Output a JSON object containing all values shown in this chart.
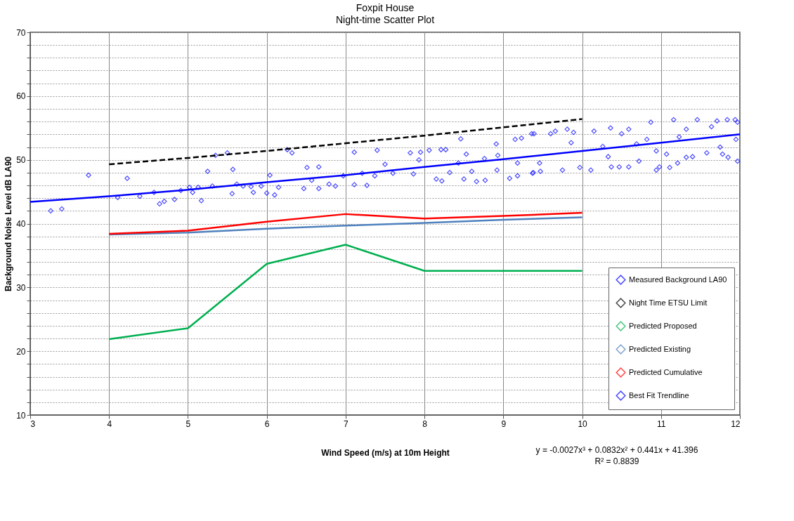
{
  "chart_data": {
    "type": "scatter",
    "title": "Foxpit House",
    "subtitle": "Night-time Scatter Plot",
    "xlabel": "Wind Speed (m/s) at 10m Height",
    "ylabel": "Background Noise Level dB LA90",
    "xlim": [
      3,
      12
    ],
    "xticks": [
      3,
      4,
      5,
      6,
      7,
      8,
      9,
      10,
      11,
      12
    ],
    "ylim": [
      10,
      70
    ],
    "yticks": [
      10,
      {
        "value": 12,
        "label": null
      },
      {
        "value": 14,
        "label": null
      },
      {
        "value": 16,
        "label": null
      },
      {
        "value": 18,
        "label": null
      },
      20,
      {
        "value": 22,
        "label": null
      },
      {
        "value": 24,
        "label": null
      },
      {
        "value": 26,
        "label": null
      },
      {
        "value": 28,
        "label": null
      },
      30,
      {
        "value": 32,
        "label": null
      },
      {
        "value": 34,
        "label": null
      },
      {
        "value": 36,
        "label": null
      },
      {
        "value": 38,
        "label": null
      },
      40,
      {
        "value": 42,
        "label": null
      },
      {
        "value": 44,
        "label": null
      },
      {
        "value": 46,
        "label": null
      },
      {
        "value": 48,
        "label": null
      },
      50,
      {
        "value": 52,
        "label": null
      },
      {
        "value": 54,
        "label": null
      },
      {
        "value": 56,
        "label": null
      },
      {
        "value": 58,
        "label": null
      },
      60,
      {
        "value": 62,
        "label": null
      },
      {
        "value": 64,
        "label": null
      },
      {
        "value": 66,
        "label": null
      },
      {
        "value": 68,
        "label": null
      },
      70
    ],
    "grid": true,
    "legend": "bottom right",
    "annotations": [
      "y = -0.0027x³ + 0.0832x² + 0.441x + 41.396",
      "R² = 0.8839"
    ],
    "series": [
      {
        "name": "Measured Background LA90",
        "color": "#0000ff",
        "marker": "diamond",
        "x": [
          3.26,
          3.4,
          3.74,
          4.11,
          4.23,
          4.39,
          4.57,
          4.64,
          4.7,
          4.83,
          4.91,
          5.02,
          5.06,
          5.13,
          5.17,
          5.25,
          5.31,
          5.35,
          5.5,
          5.57,
          5.56,
          5.62,
          5.7,
          5.8,
          5.83,
          5.93,
          6.0,
          6.04,
          6.1,
          6.15,
          6.26,
          6.32,
          6.51,
          6.66,
          6.47,
          6.57,
          6.66,
          6.79,
          6.87,
          6.97,
          7.11,
          7.11,
          7.27,
          7.21,
          7.37,
          7.4,
          7.5,
          7.6,
          7.82,
          7.86,
          7.95,
          7.93,
          8.06,
          8.15,
          8.21,
          8.27,
          8.22,
          8.32,
          8.43,
          8.46,
          8.53,
          8.5,
          8.6,
          8.66,
          8.76,
          8.77,
          8.91,
          8.92,
          8.93,
          9.08,
          9.15,
          9.23,
          9.18,
          9.38,
          9.36,
          9.18,
          9.37,
          9.39,
          9.47,
          9.46,
          9.6,
          9.66,
          9.75,
          9.81,
          9.86,
          9.89,
          9.97,
          10.11,
          10.15,
          10.26,
          10.33,
          10.36,
          10.37,
          10.47,
          10.5,
          10.59,
          10.59,
          10.69,
          10.72,
          10.82,
          10.87,
          10.94,
          10.94,
          10.98,
          11.07,
          11.11,
          11.16,
          11.21,
          11.23,
          11.32,
          11.32,
          11.4,
          11.46,
          11.58,
          11.64,
          11.71,
          11.75,
          11.78,
          11.85,
          11.84,
          11.94,
          11.95,
          11.97,
          11.97
        ],
        "values": [
          42.0,
          42.3,
          47.6,
          44.1,
          47.1,
          44.3,
          44.9,
          43.1,
          43.5,
          43.8,
          45.2,
          45.7,
          44.9,
          45.7,
          43.6,
          48.2,
          45.9,
          50.7,
          51.1,
          48.5,
          44.7,
          46.2,
          45.9,
          45.8,
          44.9,
          45.9,
          44.8,
          47.6,
          44.5,
          45.7,
          51.6,
          51.1,
          48.8,
          48.9,
          45.5,
          46.8,
          45.5,
          46.2,
          45.9,
          47.5,
          51.2,
          46.1,
          46.0,
          47.9,
          47.5,
          51.5,
          49.3,
          47.9,
          51.1,
          47.8,
          51.2,
          50.0,
          51.5,
          47.0,
          51.6,
          51.6,
          46.7,
          48.0,
          49.5,
          53.3,
          50.9,
          47.0,
          48.2,
          46.6,
          50.2,
          46.8,
          52.5,
          48.4,
          50.7,
          47.1,
          53.2,
          53.4,
          49.5,
          48.0,
          54.1,
          47.5,
          47.9,
          54.1,
          48.2,
          49.5,
          54.1,
          54.5,
          48.4,
          54.8,
          52.7,
          54.3,
          48.8,
          48.4,
          54.5,
          52.1,
          50.5,
          55.0,
          48.9,
          48.9,
          54.1,
          48.9,
          54.8,
          52.5,
          49.8,
          53.2,
          55.9,
          48.4,
          51.4,
          48.9,
          50.9,
          48.8,
          56.3,
          49.5,
          53.6,
          50.4,
          54.8,
          50.5,
          56.3,
          51.1,
          55.2,
          56.1,
          52.0,
          50.9,
          50.4,
          56.3,
          56.3,
          53.2,
          49.8,
          55.9
        ]
      },
      {
        "name": "Night Time ETSU Limit",
        "type": "line",
        "color": "#000000",
        "line_style": "dashed",
        "x": [
          4,
          5,
          6,
          7,
          8,
          9,
          10
        ],
        "values": [
          49.3,
          50.3,
          51.4,
          52.6,
          53.8,
          55.1,
          56.4
        ]
      },
      {
        "name": "Predicted Proposed",
        "type": "line",
        "color": "#00b050",
        "x": [
          4,
          5,
          6,
          7,
          8,
          9,
          10
        ],
        "values": [
          21.9,
          23.6,
          33.7,
          36.7,
          32.6,
          32.6,
          32.6
        ]
      },
      {
        "name": "Predicted Existing",
        "type": "line",
        "color": "#4f81bd",
        "x": [
          4,
          5,
          6,
          7,
          8,
          9,
          10
        ],
        "values": [
          38.3,
          38.6,
          39.2,
          39.7,
          40.1,
          40.6,
          41.0
        ]
      },
      {
        "name": "Predicted Cumulative",
        "type": "line",
        "color": "#ff0000",
        "x": [
          4,
          5,
          6,
          7,
          8,
          9,
          10
        ],
        "values": [
          38.4,
          38.9,
          40.3,
          41.5,
          40.8,
          41.2,
          41.7
        ]
      },
      {
        "name": "Best Fit Trendline",
        "type": "line",
        "color": "#0000ff",
        "x": [
          3,
          4,
          5,
          6,
          7,
          8,
          9,
          10,
          11,
          12
        ],
        "values": [
          43.4,
          44.3,
          45.3,
          46.5,
          47.6,
          48.9,
          50.1,
          51.4,
          52.7,
          54.0
        ]
      }
    ]
  }
}
